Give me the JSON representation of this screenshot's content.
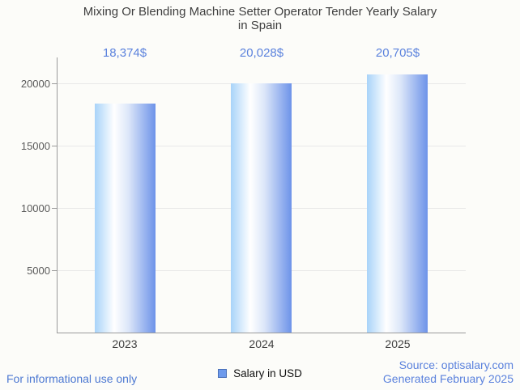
{
  "chart": {
    "title_lines": [
      "Mixing Or Blending Machine Setter Operator Tender Yearly Salary",
      "in Spain"
    ]
  },
  "chart_data": {
    "type": "bar",
    "title": "Mixing Or Blending Machine Setter Operator Tender Yearly Salary in Spain",
    "categories": [
      "2023",
      "2024",
      "2025"
    ],
    "series": [
      {
        "name": "Salary in USD",
        "values": [
          18374,
          20028,
          20705
        ]
      }
    ],
    "value_labels": [
      "18,374$",
      "20,028$",
      "20,705$"
    ],
    "yticks": [
      5000,
      10000,
      15000,
      20000
    ],
    "ytick_labels": [
      "5000",
      "10000",
      "15000",
      "20000"
    ],
    "ylim": [
      0,
      22100
    ],
    "xlabel": "",
    "ylabel": "",
    "grid": true,
    "legend_position": "bottom"
  },
  "legend": {
    "label": "Salary in USD"
  },
  "footer": {
    "left": "For informational use only",
    "source": "Source: optisalary.com",
    "generated": "Generated February 2025"
  },
  "colors": {
    "background": "#fcfcf9",
    "title_text": "#3f3f3f",
    "value_label_text": "#5b82dd",
    "bar_gradient_start": "#a8d3f9",
    "bar_gradient_mid": "#ffffff",
    "bar_gradient_end": "#6d93e9",
    "axis_line": "#9a9a9a",
    "gridline": "#e8e8e8",
    "ytick_text": "#5a5a5a",
    "xtick_text": "#3f3f3f",
    "legend_swatch_fill": "#6d9aec",
    "legend_swatch_border": "#4a70b8",
    "footer_left_text": "#4d79d2",
    "footer_right_text": "#5b82dd"
  }
}
